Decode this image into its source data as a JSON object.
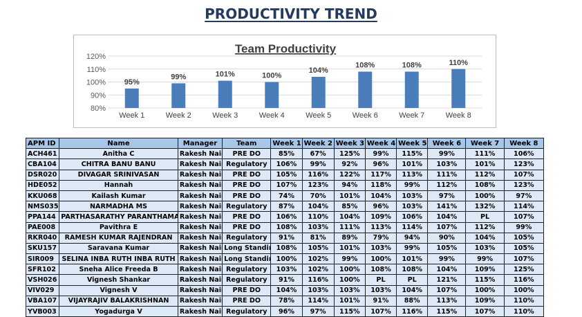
{
  "page": {
    "title": "PRODUCTIVITY TREND"
  },
  "chart_data": {
    "type": "bar",
    "title": "Team Productivity",
    "categories": [
      "Week 1",
      "Week 2",
      "Week 3",
      "Week 4",
      "Week 5",
      "Week 6",
      "Week 7",
      "Week 8"
    ],
    "values": [
      95,
      99,
      101,
      100,
      104,
      108,
      108,
      110
    ],
    "data_labels": [
      "95%",
      "99%",
      "101%",
      "100%",
      "104%",
      "108%",
      "108%",
      "110%"
    ],
    "y_ticks": [
      "80%",
      "90%",
      "100%",
      "110%",
      "120%"
    ],
    "ylim": [
      80,
      120
    ],
    "grid": true,
    "legend": "none",
    "bar_color": "#4a7ebb"
  },
  "table": {
    "headers": [
      "APM ID",
      "Name",
      "Manager",
      "Team",
      "Week 1",
      "Week 2",
      "Week 3",
      "Week 4",
      "Week 5",
      "Week 6",
      "Week 7",
      "Week 8"
    ],
    "rows": [
      [
        "ACH461",
        "Anitha C",
        "Rakesh Nair",
        "PRE DO",
        "85%",
        "67%",
        "125%",
        "99%",
        "115%",
        "99%",
        "111%",
        "106%"
      ],
      [
        "CBA104",
        "CHITRA BANU BANU",
        "Rakesh Nair",
        "Regulatory",
        "106%",
        "99%",
        "92%",
        "96%",
        "101%",
        "103%",
        "101%",
        "123%"
      ],
      [
        "DSR020",
        "DIVAGAR SRINIVASAN",
        "Rakesh Nair",
        "PRE DO",
        "105%",
        "116%",
        "122%",
        "117%",
        "113%",
        "111%",
        "112%",
        "107%"
      ],
      [
        "HDE052",
        "Hannah",
        "Rakesh Nair",
        "PRE DO",
        "107%",
        "123%",
        "94%",
        "118%",
        "99%",
        "112%",
        "108%",
        "123%"
      ],
      [
        "KKU068",
        "Kailash Kumar",
        "Rakesh Nair",
        "PRE DO",
        "74%",
        "70%",
        "101%",
        "104%",
        "103%",
        "97%",
        "100%",
        "97%"
      ],
      [
        "NMS035",
        "NARMADHA MS",
        "Rakesh Nair",
        "Regulatory",
        "87%",
        "104%",
        "85%",
        "96%",
        "103%",
        "141%",
        "132%",
        "114%"
      ],
      [
        "PPA144",
        "PARTHASARATHY PARANTHAMAN",
        "Rakesh Nair",
        "PRE DO",
        "106%",
        "110%",
        "104%",
        "109%",
        "106%",
        "104%",
        "PL",
        "107%"
      ],
      [
        "PAE008",
        "Pavithra E",
        "Rakesh Nair",
        "PRE DO",
        "108%",
        "103%",
        "111%",
        "113%",
        "114%",
        "107%",
        "112%",
        "99%"
      ],
      [
        "RKR040",
        "RAMESH KUMAR RAJENDRAN",
        "Rakesh Nair",
        "Regulatory",
        "91%",
        "81%",
        "89%",
        "79%",
        "94%",
        "90%",
        "104%",
        "105%"
      ],
      [
        "SKU157",
        "Saravana Kumar",
        "Rakesh Nair",
        "Long Standing",
        "108%",
        "105%",
        "101%",
        "103%",
        "99%",
        "105%",
        "103%",
        "105%"
      ],
      [
        "SIR009",
        "SELINA INBA RUTH INBA RUTH",
        "Rakesh Nair",
        "Long Standing",
        "100%",
        "102%",
        "99%",
        "100%",
        "101%",
        "99%",
        "99%",
        "107%"
      ],
      [
        "SFR102",
        "Sneha Alice Freeda B",
        "Rakesh Nair",
        "Regulatory",
        "103%",
        "102%",
        "100%",
        "108%",
        "108%",
        "104%",
        "109%",
        "125%"
      ],
      [
        "VSH026",
        "Vignesh Shankar",
        "Rakesh Nair",
        "Regulatory",
        "91%",
        "116%",
        "100%",
        "PL",
        "PL",
        "121%",
        "115%",
        "116%"
      ],
      [
        "VIV029",
        "Vignesh V",
        "Rakesh Nair",
        "PRE DO",
        "104%",
        "103%",
        "103%",
        "103%",
        "104%",
        "107%",
        "100%",
        "100%"
      ],
      [
        "VBA107",
        "VIJAYRAJIV BALAKRISHNAN",
        "Rakesh Nair",
        "PRE DO",
        "78%",
        "114%",
        "101%",
        "91%",
        "88%",
        "113%",
        "109%",
        "110%"
      ],
      [
        "YVB003",
        "Yogadurga V",
        "Rakesh Nair",
        "Regulatory",
        "96%",
        "97%",
        "115%",
        "107%",
        "116%",
        "115%",
        "107%",
        "110%"
      ]
    ]
  }
}
